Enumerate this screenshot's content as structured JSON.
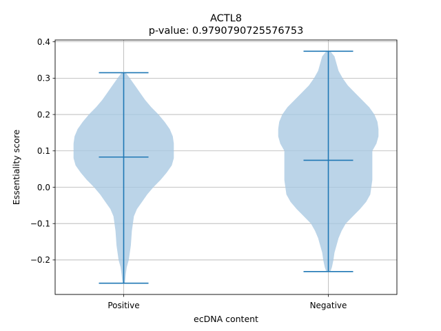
{
  "chart_data": {
    "type": "violin",
    "title": "ACTL8",
    "subtitle": "p-value: 0.9790790725576753",
    "xlabel": "ecDNA content",
    "ylabel": "Essentiality score",
    "categories": [
      "Positive",
      "Negative"
    ],
    "ylim": [
      -0.295,
      0.405
    ],
    "yticks": [
      -0.2,
      -0.1,
      0.0,
      0.1,
      0.2,
      0.3,
      0.4
    ],
    "ytick_labels": [
      "−0.2",
      "−0.1",
      "0.0",
      "0.1",
      "0.2",
      "0.3",
      "0.4"
    ],
    "grid": true,
    "colors": {
      "body": "#a8c8e1",
      "line": "#1f77b4"
    },
    "violins": [
      {
        "category": "Positive",
        "min": -0.264,
        "max": 0.315,
        "median": 0.083,
        "density": [
          [
            0.315,
            0.02
          ],
          [
            0.3,
            0.06
          ],
          [
            0.28,
            0.11
          ],
          [
            0.26,
            0.16
          ],
          [
            0.24,
            0.21
          ],
          [
            0.22,
            0.27
          ],
          [
            0.2,
            0.34
          ],
          [
            0.18,
            0.4
          ],
          [
            0.16,
            0.45
          ],
          [
            0.14,
            0.48
          ],
          [
            0.12,
            0.49
          ],
          [
            0.1,
            0.49
          ],
          [
            0.08,
            0.49
          ],
          [
            0.06,
            0.47
          ],
          [
            0.04,
            0.42
          ],
          [
            0.02,
            0.36
          ],
          [
            0.0,
            0.29
          ],
          [
            -0.02,
            0.23
          ],
          [
            -0.04,
            0.18
          ],
          [
            -0.06,
            0.13
          ],
          [
            -0.08,
            0.1
          ],
          [
            -0.1,
            0.09
          ],
          [
            -0.12,
            0.08
          ],
          [
            -0.14,
            0.075
          ],
          [
            -0.16,
            0.07
          ],
          [
            -0.18,
            0.06
          ],
          [
            -0.2,
            0.05
          ],
          [
            -0.22,
            0.03
          ],
          [
            -0.24,
            0.02
          ],
          [
            -0.255,
            0.015
          ],
          [
            -0.264,
            0.01
          ]
        ]
      },
      {
        "category": "Negative",
        "min": -0.232,
        "max": 0.374,
        "median": 0.074,
        "density": [
          [
            0.374,
            0.02
          ],
          [
            0.36,
            0.06
          ],
          [
            0.34,
            0.08
          ],
          [
            0.32,
            0.1
          ],
          [
            0.3,
            0.14
          ],
          [
            0.28,
            0.19
          ],
          [
            0.26,
            0.26
          ],
          [
            0.24,
            0.33
          ],
          [
            0.22,
            0.4
          ],
          [
            0.2,
            0.45
          ],
          [
            0.18,
            0.48
          ],
          [
            0.16,
            0.49
          ],
          [
            0.14,
            0.49
          ],
          [
            0.12,
            0.47
          ],
          [
            0.1,
            0.43
          ],
          [
            0.08,
            0.43
          ],
          [
            0.06,
            0.43
          ],
          [
            0.04,
            0.43
          ],
          [
            0.02,
            0.43
          ],
          [
            0.0,
            0.42
          ],
          [
            -0.02,
            0.41
          ],
          [
            -0.04,
            0.37
          ],
          [
            -0.06,
            0.31
          ],
          [
            -0.08,
            0.24
          ],
          [
            -0.1,
            0.17
          ],
          [
            -0.12,
            0.13
          ],
          [
            -0.14,
            0.1
          ],
          [
            -0.16,
            0.08
          ],
          [
            -0.18,
            0.06
          ],
          [
            -0.2,
            0.05
          ],
          [
            -0.22,
            0.035
          ],
          [
            -0.232,
            0.02
          ]
        ]
      }
    ]
  }
}
